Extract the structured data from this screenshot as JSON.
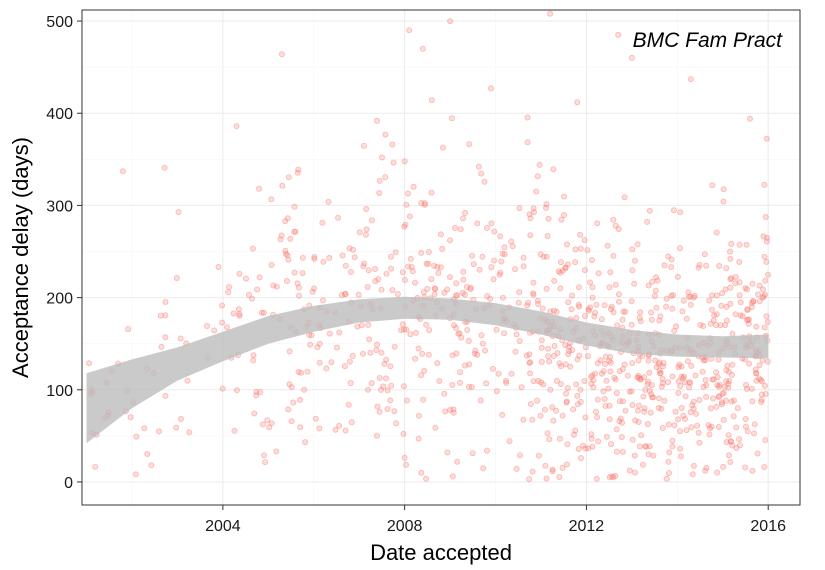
{
  "chart_data": {
    "type": "scatter",
    "title": "",
    "annotation": "BMC Fam Pract",
    "xlabel": "Date accepted",
    "ylabel": "Acceptance delay (days)",
    "xlim": [
      2000.9,
      2016.7
    ],
    "ylim": [
      -25,
      512
    ],
    "x_ticks": [
      2004,
      2008,
      2012,
      2016
    ],
    "y_ticks": [
      0,
      100,
      200,
      300,
      400,
      500
    ],
    "grid": true,
    "point_color": "#f8766d",
    "point_alpha": 0.25,
    "smooth": {
      "color": "#bdbdbd",
      "x": [
        2001.0,
        2002.0,
        2003.0,
        2004.0,
        2005.0,
        2006.0,
        2007.0,
        2008.0,
        2009.0,
        2010.0,
        2011.0,
        2012.0,
        2013.0,
        2014.0,
        2015.0,
        2016.0
      ],
      "upper": [
        118,
        133,
        146,
        163,
        180,
        191,
        198,
        201,
        199,
        194,
        185,
        173,
        165,
        160,
        158,
        160
      ],
      "lower": [
        42,
        80,
        110,
        131,
        150,
        163,
        173,
        177,
        176,
        170,
        160,
        148,
        139,
        136,
        135,
        134
      ]
    },
    "clusters": [
      {
        "x": [
          2001.0,
          2002.5
        ],
        "y_mean": 95,
        "y_sd": 45,
        "n": 25
      },
      {
        "x": [
          2002.5,
          2004.5
        ],
        "y_mean": 135,
        "y_sd": 60,
        "n": 35
      },
      {
        "x": [
          2004.5,
          2007.0
        ],
        "y_mean": 170,
        "y_sd": 75,
        "n": 120
      },
      {
        "x": [
          2007.0,
          2009.0
        ],
        "y_mean": 185,
        "y_sd": 80,
        "n": 140
      },
      {
        "x": [
          2009.0,
          2011.0
        ],
        "y_mean": 180,
        "y_sd": 85,
        "n": 150
      },
      {
        "x": [
          2011.0,
          2013.0
        ],
        "y_mean": 150,
        "y_sd": 75,
        "n": 230
      },
      {
        "x": [
          2013.0,
          2016.0
        ],
        "y_mean": 140,
        "y_sd": 70,
        "n": 380
      }
    ],
    "highlight_points": [
      {
        "x": 2001.8,
        "y": 337
      },
      {
        "x": 2005.3,
        "y": 464
      },
      {
        "x": 2008.1,
        "y": 490
      },
      {
        "x": 2008.6,
        "y": 414
      },
      {
        "x": 2009.0,
        "y": 500
      },
      {
        "x": 2011.2,
        "y": 508
      },
      {
        "x": 2011.8,
        "y": 412
      },
      {
        "x": 2014.3,
        "y": 437
      },
      {
        "x": 2015.6,
        "y": 394
      },
      {
        "x": 2013.0,
        "y": 460
      },
      {
        "x": 2004.3,
        "y": 386
      },
      {
        "x": 2009.9,
        "y": 427
      },
      {
        "x": 2008.4,
        "y": 470
      },
      {
        "x": 2012.7,
        "y": 485
      }
    ]
  }
}
